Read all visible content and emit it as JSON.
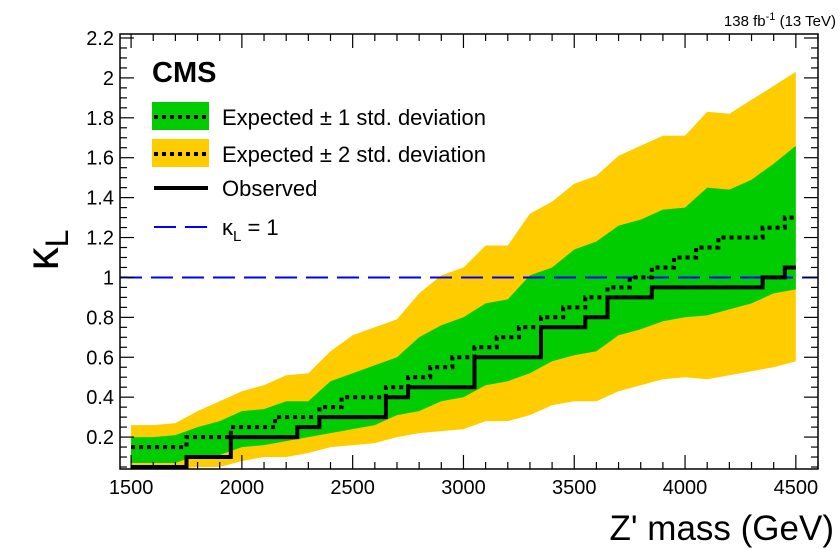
{
  "chart_data": {
    "type": "line",
    "experiment": "CMS",
    "lumi": {
      "value": "138 fb",
      "exponent": "-1",
      "energy": " (13 TeV)"
    },
    "xlabel": "Z' mass (GeV)",
    "ylabel": {
      "main": "κ",
      "sub": "L"
    },
    "xlim": [
      1450,
      4600
    ],
    "ylim": [
      0.04,
      2.22
    ],
    "xticks": [
      1500,
      2000,
      2500,
      3000,
      3500,
      4000,
      4500
    ],
    "yticks": [
      0.2,
      0.4,
      0.6,
      0.8,
      1,
      1.2,
      1.4,
      1.6,
      1.8,
      2,
      2.2
    ],
    "ytick_labels": [
      "0.2",
      "0.4",
      "0.6",
      "0.8",
      "1",
      "1.2",
      "1.4",
      "1.6",
      "1.8",
      "2",
      "2.2"
    ],
    "x": [
      1500,
      1600,
      1700,
      1800,
      1900,
      2000,
      2100,
      2200,
      2300,
      2400,
      2500,
      2600,
      2700,
      2800,
      2900,
      3000,
      3100,
      3200,
      3300,
      3400,
      3500,
      3600,
      3700,
      3800,
      3900,
      4000,
      4100,
      4200,
      4300,
      4400,
      4500
    ],
    "series": [
      {
        "name": "Expected ± 2 std. deviation",
        "kind": "band",
        "color": "#ffcc00",
        "lower": [
          0.02,
          0.02,
          0.02,
          0.05,
          0.05,
          0.08,
          0.1,
          0.1,
          0.12,
          0.15,
          0.16,
          0.17,
          0.2,
          0.22,
          0.23,
          0.24,
          0.28,
          0.28,
          0.31,
          0.36,
          0.38,
          0.38,
          0.43,
          0.46,
          0.49,
          0.5,
          0.49,
          0.51,
          0.53,
          0.55,
          0.58
        ],
        "upper": [
          0.26,
          0.26,
          0.27,
          0.33,
          0.38,
          0.43,
          0.46,
          0.51,
          0.52,
          0.63,
          0.71,
          0.75,
          0.79,
          0.92,
          1.01,
          1.05,
          1.16,
          1.16,
          1.32,
          1.38,
          1.47,
          1.51,
          1.61,
          1.66,
          1.71,
          1.71,
          1.83,
          1.82,
          1.89,
          1.96,
          2.03
        ]
      },
      {
        "name": "Expected ± 1 std. deviation",
        "kind": "band",
        "color": "#00cc00",
        "lower": [
          0.07,
          0.07,
          0.07,
          0.11,
          0.11,
          0.15,
          0.16,
          0.18,
          0.2,
          0.22,
          0.24,
          0.26,
          0.31,
          0.33,
          0.38,
          0.4,
          0.46,
          0.48,
          0.52,
          0.58,
          0.61,
          0.63,
          0.71,
          0.74,
          0.78,
          0.8,
          0.81,
          0.84,
          0.87,
          0.92,
          0.94
        ]
      },
      {
        "name": "Expected ± 1 std. deviation upper",
        "kind": "band-edge",
        "values": [
          0.2,
          0.2,
          0.21,
          0.25,
          0.28,
          0.33,
          0.34,
          0.38,
          0.38,
          0.48,
          0.52,
          0.56,
          0.6,
          0.7,
          0.76,
          0.8,
          0.87,
          0.89,
          1.01,
          1.05,
          1.14,
          1.18,
          1.26,
          1.29,
          1.34,
          1.35,
          1.45,
          1.44,
          1.49,
          1.57,
          1.66
        ]
      },
      {
        "name": "Expected",
        "kind": "line",
        "style": "dotted",
        "color": "#000000",
        "values": [
          0.15,
          0.15,
          0.15,
          0.2,
          0.2,
          0.25,
          0.25,
          0.3,
          0.3,
          0.35,
          0.4,
          0.4,
          0.45,
          0.5,
          0.55,
          0.6,
          0.65,
          0.7,
          0.75,
          0.8,
          0.85,
          0.9,
          0.95,
          1.0,
          1.05,
          1.1,
          1.15,
          1.2,
          1.2,
          1.25,
          1.3
        ]
      },
      {
        "name": "Observed",
        "kind": "line",
        "style": "solid",
        "color": "#000000",
        "values": [
          0.05,
          0.05,
          0.05,
          0.1,
          0.1,
          0.2,
          0.2,
          0.2,
          0.25,
          0.3,
          0.3,
          0.3,
          0.4,
          0.45,
          0.45,
          0.45,
          0.6,
          0.6,
          0.6,
          0.75,
          0.75,
          0.8,
          0.9,
          0.9,
          0.95,
          0.95,
          0.95,
          0.95,
          0.95,
          1.0,
          1.05
        ]
      },
      {
        "name": "κL = 1",
        "kind": "hline",
        "style": "dashed",
        "color": "#0000ff",
        "y": 1
      }
    ],
    "legend": {
      "placement": "top-left",
      "entries": [
        {
          "text": "Expected ± 1 std. deviation",
          "fill": "#00cc00",
          "line": "dotted"
        },
        {
          "text": "Expected ± 2 std. deviation",
          "fill": "#ffcc00",
          "line": "dotted"
        },
        {
          "text": "Observed",
          "line": "solid"
        },
        {
          "text": "κ",
          "sub": "L",
          "suffix": " = 1",
          "line": "dashed",
          "color": "#0000ff"
        }
      ]
    }
  }
}
